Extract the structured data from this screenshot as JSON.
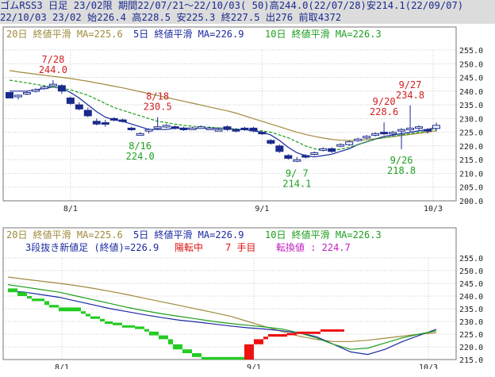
{
  "header": {
    "line1": "ゴムRSS3 日足 23/02限 期間22/07/21～22/10/03( 50)高244.0(22/07/28)安214.1(22/09/07)",
    "line2": "22/10/03 23/02 始226.4 高228.5 安225.3 終227.5 出276 前取4372"
  },
  "colors": {
    "ma20": "#a08a3c",
    "ma5": "#1a2aa0",
    "ma10": "#1e9e1e",
    "candle": "#1a2a8c",
    "up_brick": "#ee1111",
    "down_brick": "#22cc22",
    "label_red": "#d02020",
    "label_green": "#20a020",
    "grid": "#c8c8c8"
  },
  "legend_top": [
    {
      "text": "20日 終値平滑 MA=225.6",
      "color": "#a08a3c"
    },
    {
      "text": "5日 終値平滑 MA=226.9",
      "color": "#1a2aa0"
    },
    {
      "text": "10日 終値平滑 MA=226.3",
      "color": "#1e9e1e"
    }
  ],
  "legend_bottom": [
    {
      "text": "20日 終値平滑 MA=225.6",
      "color": "#a08a3c"
    },
    {
      "text": "5日 終値平滑 MA=226.9",
      "color": "#1a2aa0"
    },
    {
      "text": "10日 終値平滑 MA=226.3",
      "color": "#1e9e1e"
    }
  ],
  "brick_info": {
    "title": "3段抜き新値足 (終値)=226.9",
    "status": "陽転中",
    "count": "7 手目",
    "reversal": "転換値 : 224.7"
  },
  "chart_data": [
    {
      "type": "candlestick",
      "title": "ゴムRSS3 日足 23/02限",
      "x_labels": [
        "8/1",
        "9/1",
        "10/3"
      ],
      "x_label_index": [
        7,
        29,
        49
      ],
      "ylim": [
        200,
        255
      ],
      "ytick_labels": [
        "200.0",
        "205.0",
        "210.0",
        "215.0",
        "220.0",
        "225.0",
        "230.0",
        "235.0",
        "240.0",
        "245.0",
        "250.0",
        "255.0"
      ],
      "candles": [
        {
          "o": 239.5,
          "h": 239.5,
          "l": 237.5,
          "c": 237.5
        },
        {
          "o": 238.0,
          "h": 238.8,
          "l": 237.0,
          "c": 238.5
        },
        {
          "o": 239.0,
          "h": 240.0,
          "l": 238.5,
          "c": 239.5
        },
        {
          "o": 240.0,
          "h": 241.0,
          "l": 239.5,
          "c": 240.5
        },
        {
          "o": 241.0,
          "h": 242.0,
          "l": 240.5,
          "c": 241.5
        },
        {
          "o": 242.5,
          "h": 244.0,
          "l": 242.0,
          "c": 242.5
        },
        {
          "o": 242.0,
          "h": 242.5,
          "l": 239.0,
          "c": 240.0
        },
        {
          "o": 237.5,
          "h": 238.0,
          "l": 235.0,
          "c": 235.5
        },
        {
          "o": 235.0,
          "h": 236.0,
          "l": 233.0,
          "c": 233.5
        },
        {
          "o": 233.0,
          "h": 234.0,
          "l": 230.5,
          "c": 231.0
        },
        {
          "o": 229.0,
          "h": 230.0,
          "l": 227.5,
          "c": 228.0
        },
        {
          "o": 228.5,
          "h": 229.5,
          "l": 227.0,
          "c": 228.0
        },
        {
          "o": 230.0,
          "h": 230.5,
          "l": 229.0,
          "c": 229.5
        },
        {
          "o": 229.5,
          "h": 230.0,
          "l": 228.5,
          "c": 229.0
        },
        {
          "o": 226.5,
          "h": 227.0,
          "l": 225.5,
          "c": 226.0
        },
        {
          "o": 224.5,
          "h": 225.0,
          "l": 224.0,
          "c": 224.5
        },
        {
          "o": 225.5,
          "h": 226.5,
          "l": 224.5,
          "c": 226.0
        },
        {
          "o": 226.5,
          "h": 230.5,
          "l": 226.0,
          "c": 227.0
        },
        {
          "o": 227.5,
          "h": 228.0,
          "l": 226.5,
          "c": 227.5
        },
        {
          "o": 227.0,
          "h": 227.5,
          "l": 226.0,
          "c": 226.5
        },
        {
          "o": 226.5,
          "h": 227.0,
          "l": 225.5,
          "c": 226.0
        },
        {
          "o": 226.5,
          "h": 227.0,
          "l": 226.0,
          "c": 226.5
        },
        {
          "o": 227.0,
          "h": 227.5,
          "l": 226.5,
          "c": 227.0
        },
        {
          "o": 226.5,
          "h": 227.0,
          "l": 226.0,
          "c": 226.5
        },
        {
          "o": 226.0,
          "h": 226.5,
          "l": 225.5,
          "c": 226.0
        },
        {
          "o": 227.0,
          "h": 227.5,
          "l": 225.5,
          "c": 226.0
        },
        {
          "o": 226.0,
          "h": 226.5,
          "l": 225.0,
          "c": 225.5
        },
        {
          "o": 226.5,
          "h": 227.0,
          "l": 225.5,
          "c": 226.0
        },
        {
          "o": 226.5,
          "h": 227.0,
          "l": 225.0,
          "c": 225.5
        },
        {
          "o": 225.0,
          "h": 225.5,
          "l": 224.0,
          "c": 224.5
        },
        {
          "o": 222.0,
          "h": 222.5,
          "l": 220.5,
          "c": 221.0
        },
        {
          "o": 220.0,
          "h": 220.5,
          "l": 217.5,
          "c": 218.0
        },
        {
          "o": 216.5,
          "h": 217.0,
          "l": 215.0,
          "c": 215.5
        },
        {
          "o": 215.0,
          "h": 216.0,
          "l": 214.1,
          "c": 215.0
        },
        {
          "o": 216.5,
          "h": 217.0,
          "l": 215.5,
          "c": 216.0
        },
        {
          "o": 217.0,
          "h": 218.0,
          "l": 216.5,
          "c": 217.5
        },
        {
          "o": 218.5,
          "h": 219.5,
          "l": 218.0,
          "c": 219.0
        },
        {
          "o": 219.0,
          "h": 219.5,
          "l": 217.5,
          "c": 218.0
        },
        {
          "o": 220.0,
          "h": 221.0,
          "l": 219.5,
          "c": 220.5
        },
        {
          "o": 220.5,
          "h": 222.0,
          "l": 220.0,
          "c": 221.5
        },
        {
          "o": 222.0,
          "h": 223.0,
          "l": 221.5,
          "c": 222.5
        },
        {
          "o": 223.0,
          "h": 224.0,
          "l": 222.5,
          "c": 223.5
        },
        {
          "o": 224.0,
          "h": 225.0,
          "l": 223.5,
          "c": 224.5
        },
        {
          "o": 225.0,
          "h": 228.6,
          "l": 224.0,
          "c": 224.5
        },
        {
          "o": 224.5,
          "h": 225.5,
          "l": 223.5,
          "c": 225.0
        },
        {
          "o": 225.5,
          "h": 226.5,
          "l": 218.8,
          "c": 226.0
        },
        {
          "o": 226.5,
          "h": 234.8,
          "l": 225.0,
          "c": 226.5
        },
        {
          "o": 226.5,
          "h": 227.5,
          "l": 225.5,
          "c": 227.0
        },
        {
          "o": 226.0,
          "h": 226.5,
          "l": 224.5,
          "c": 225.5
        },
        {
          "o": 226.4,
          "h": 228.5,
          "l": 225.3,
          "c": 227.5
        }
      ],
      "annotations": [
        {
          "text": "7/28",
          "index": 5,
          "value": 244.0,
          "color": "red",
          "pos": "above"
        },
        {
          "text": "244.0",
          "index": 5,
          "value": 244.0,
          "color": "red",
          "pos": "above2"
        },
        {
          "text": "8/18",
          "index": 17,
          "value": 230.5,
          "color": "red",
          "pos": "above"
        },
        {
          "text": "230.5",
          "index": 17,
          "value": 230.5,
          "color": "red",
          "pos": "above2"
        },
        {
          "text": "8/16",
          "index": 15,
          "value": 224.0,
          "color": "green",
          "pos": "below"
        },
        {
          "text": "224.0",
          "index": 15,
          "value": 224.0,
          "color": "green",
          "pos": "below2"
        },
        {
          "text": "9/ 7",
          "index": 33,
          "value": 214.1,
          "color": "green",
          "pos": "below"
        },
        {
          "text": "214.1",
          "index": 33,
          "value": 214.1,
          "color": "green",
          "pos": "below2"
        },
        {
          "text": "9/20",
          "index": 43,
          "value": 228.6,
          "color": "red",
          "pos": "above"
        },
        {
          "text": "228.6",
          "index": 43,
          "value": 228.6,
          "color": "red",
          "pos": "above2"
        },
        {
          "text": "9/26",
          "index": 45,
          "value": 218.8,
          "color": "green",
          "pos": "below"
        },
        {
          "text": "218.8",
          "index": 45,
          "value": 218.8,
          "color": "green",
          "pos": "below2"
        },
        {
          "text": "9/27",
          "index": 46,
          "value": 234.8,
          "color": "red",
          "pos": "above"
        },
        {
          "text": "234.8",
          "index": 46,
          "value": 234.8,
          "color": "red",
          "pos": "above2"
        }
      ],
      "series": [
        {
          "name": "20日 終値平滑",
          "values": [
            247.5,
            247.0,
            246.6,
            246.2,
            245.8,
            245.4,
            245.0,
            244.6,
            244.1,
            243.6,
            243.0,
            242.4,
            241.8,
            241.2,
            240.5,
            239.8,
            239.1,
            238.4,
            237.7,
            237.0,
            236.3,
            235.6,
            234.9,
            234.2,
            233.5,
            232.8,
            232.0,
            231.0,
            230.0,
            229.0,
            228.0,
            227.0,
            226.0,
            225.0,
            224.2,
            223.5,
            222.9,
            222.4,
            222.1,
            222.0,
            222.1,
            222.3,
            222.6,
            223.0,
            223.4,
            223.8,
            224.2,
            224.6,
            225.0,
            225.6
          ]
        },
        {
          "name": "5日 終値平滑",
          "values": [
            240.0,
            240.0,
            240.0,
            240.5,
            241.0,
            241.5,
            241.0,
            239.5,
            237.5,
            235.0,
            232.5,
            230.5,
            229.5,
            229.0,
            228.0,
            227.0,
            226.0,
            226.0,
            226.0,
            226.5,
            226.5,
            226.5,
            226.5,
            226.5,
            226.5,
            226.5,
            226.0,
            226.0,
            225.5,
            225.0,
            224.0,
            222.0,
            219.5,
            217.5,
            216.5,
            216.0,
            216.5,
            217.0,
            218.0,
            219.0,
            220.5,
            221.5,
            222.5,
            223.5,
            224.0,
            224.5,
            225.0,
            225.5,
            226.0,
            226.9
          ]
        },
        {
          "name": "10日 終値平滑",
          "values": [
            244.0,
            243.5,
            243.0,
            242.5,
            242.0,
            241.5,
            241.0,
            240.5,
            239.5,
            238.5,
            237.0,
            235.5,
            234.0,
            233.0,
            232.0,
            231.0,
            230.0,
            229.0,
            228.5,
            228.0,
            227.5,
            227.2,
            227.0,
            226.8,
            226.6,
            226.4,
            226.2,
            226.0,
            225.8,
            225.5,
            225.0,
            224.0,
            223.0,
            221.5,
            220.0,
            219.0,
            218.5,
            218.5,
            218.8,
            219.5,
            220.5,
            221.5,
            222.5,
            223.0,
            223.5,
            224.0,
            224.5,
            225.0,
            225.5,
            226.3
          ]
        }
      ]
    },
    {
      "type": "brick",
      "title": "3段抜き新値足 (終値)",
      "x_labels": [
        "8/1",
        "9/1",
        "10/3"
      ],
      "ylim": [
        215,
        255
      ],
      "ytick_labels": [
        "215.0",
        "220.0",
        "225.0",
        "230.0",
        "235.0",
        "240.0",
        "245.0",
        "250.0",
        "255.0"
      ],
      "bricks": [
        {
          "from": 243.0,
          "to": 241.5,
          "dir": "down"
        },
        {
          "from": 241.5,
          "to": 240.0,
          "dir": "down"
        },
        {
          "from": 240.0,
          "to": 239.0,
          "dir": "down"
        },
        {
          "from": 239.0,
          "to": 238.0,
          "dir": "down"
        },
        {
          "from": 238.0,
          "to": 236.5,
          "dir": "down"
        },
        {
          "from": 236.5,
          "to": 235.5,
          "dir": "down"
        },
        {
          "from": 235.5,
          "to": 234.0,
          "dir": "down"
        },
        {
          "from": 234.0,
          "to": 233.0,
          "dir": "down"
        },
        {
          "from": 233.0,
          "to": 232.0,
          "dir": "down"
        },
        {
          "from": 232.0,
          "to": 231.0,
          "dir": "down"
        },
        {
          "from": 231.0,
          "to": 230.0,
          "dir": "down"
        },
        {
          "from": 230.0,
          "to": 229.5,
          "dir": "down"
        },
        {
          "from": 229.5,
          "to": 228.5,
          "dir": "down"
        },
        {
          "from": 228.5,
          "to": 228.0,
          "dir": "down"
        },
        {
          "from": 228.0,
          "to": 227.0,
          "dir": "down"
        },
        {
          "from": 227.0,
          "to": 226.0,
          "dir": "down"
        },
        {
          "from": 226.0,
          "to": 224.5,
          "dir": "down"
        },
        {
          "from": 224.5,
          "to": 223.0,
          "dir": "down"
        },
        {
          "from": 223.0,
          "to": 221.0,
          "dir": "down"
        },
        {
          "from": 221.0,
          "to": 219.0,
          "dir": "down"
        },
        {
          "from": 219.0,
          "to": 217.5,
          "dir": "down"
        },
        {
          "from": 217.5,
          "to": 216.0,
          "dir": "down"
        },
        {
          "from": 216.0,
          "to": 215.0,
          "dir": "down"
        },
        {
          "from": 215.0,
          "to": 221.0,
          "dir": "up"
        },
        {
          "from": 221.0,
          "to": 223.0,
          "dir": "up"
        },
        {
          "from": 223.0,
          "to": 224.0,
          "dir": "up"
        },
        {
          "from": 224.0,
          "to": 225.0,
          "dir": "up"
        },
        {
          "from": 225.0,
          "to": 225.5,
          "dir": "up"
        },
        {
          "from": 225.5,
          "to": 226.0,
          "dir": "up"
        },
        {
          "from": 226.0,
          "to": 226.9,
          "dir": "up"
        }
      ],
      "brick_widths": [
        12,
        12,
        6,
        16,
        6,
        12,
        28,
        6,
        6,
        12,
        6,
        10,
        12,
        16,
        12,
        6,
        12,
        12,
        6,
        12,
        12,
        12,
        54,
        12,
        12,
        6,
        24,
        12,
        30,
        30
      ],
      "series": [
        {
          "name": "20日 終値平滑",
          "values": [
            247.5,
            246.6,
            245.8,
            245.0,
            244.1,
            243.0,
            241.8,
            240.5,
            239.1,
            237.7,
            236.3,
            234.9,
            233.5,
            232.0,
            230.0,
            228.0,
            226.0,
            224.2,
            222.9,
            222.1,
            222.1,
            222.6,
            223.4,
            224.2,
            225.0,
            225.6
          ]
        },
        {
          "name": "5日 終値平滑",
          "values": [
            242.0,
            241.5,
            240.5,
            239.5,
            238.0,
            236.5,
            235.0,
            233.8,
            232.6,
            231.5,
            230.5,
            229.8,
            229.0,
            228.2,
            227.5,
            227.0,
            226.3,
            225.5,
            224.0,
            221.0,
            218.0,
            217.0,
            219.0,
            222.0,
            224.5,
            226.9
          ]
        },
        {
          "name": "10日 終値平滑",
          "values": [
            244.5,
            243.5,
            242.5,
            241.5,
            240.0,
            238.5,
            237.0,
            235.5,
            234.2,
            233.0,
            232.0,
            231.0,
            230.0,
            229.2,
            228.5,
            227.8,
            227.0,
            225.5,
            223.5,
            221.0,
            219.0,
            219.5,
            221.5,
            223.5,
            225.0,
            226.3
          ]
        }
      ]
    }
  ]
}
